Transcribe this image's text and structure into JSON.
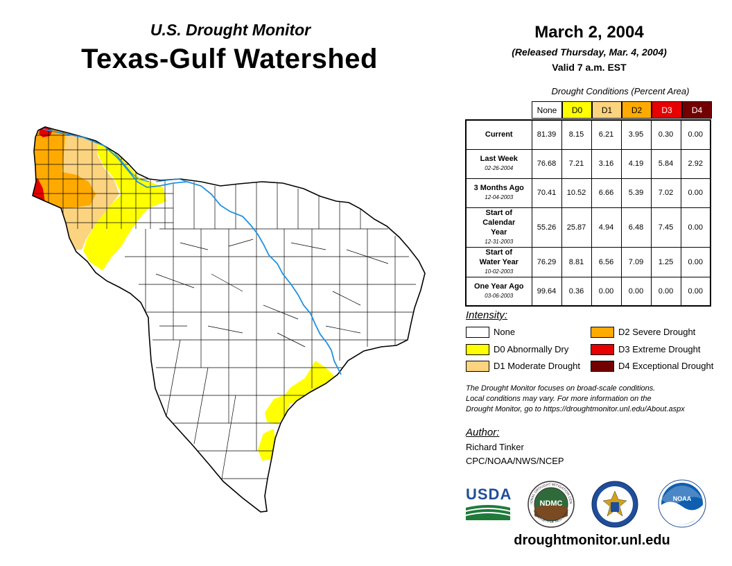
{
  "header": {
    "subtitle": "U.S. Drought Monitor",
    "title": "Texas-Gulf Watershed",
    "date": "March 2, 2004",
    "released": "(Released Thursday, Mar. 4, 2004)",
    "valid": "Valid 7 a.m. EST"
  },
  "table": {
    "caption": "Drought Conditions (Percent Area)",
    "columns": [
      "None",
      "D0",
      "D1",
      "D2",
      "D3",
      "D4"
    ],
    "column_colors": [
      "#ffffff",
      "#ffff00",
      "#fcd37f",
      "#ffaa00",
      "#e60000",
      "#730000"
    ],
    "rows": [
      {
        "label": "Current",
        "date": "",
        "values": [
          "81.39",
          "8.15",
          "6.21",
          "3.95",
          "0.30",
          "0.00"
        ]
      },
      {
        "label": "Last Week",
        "date": "02-26-2004",
        "values": [
          "76.68",
          "7.21",
          "3.16",
          "4.19",
          "5.84",
          "2.92"
        ]
      },
      {
        "label": "3 Months Ago",
        "date": "12-04-2003",
        "values": [
          "70.41",
          "10.52",
          "6.66",
          "5.39",
          "7.02",
          "0.00"
        ]
      },
      {
        "label": "Start of Calendar Year",
        "date": "12-31-2003",
        "values": [
          "55.26",
          "25.87",
          "4.94",
          "6.48",
          "7.45",
          "0.00"
        ]
      },
      {
        "label": "Start of Water Year",
        "date": "10-02-2003",
        "values": [
          "76.29",
          "8.81",
          "6.56",
          "7.09",
          "1.25",
          "0.00"
        ]
      },
      {
        "label": "One Year Ago",
        "date": "03-06-2003",
        "values": [
          "99.64",
          "0.36",
          "0.00",
          "0.00",
          "0.00",
          "0.00"
        ]
      }
    ]
  },
  "legend": {
    "title": "Intensity:",
    "items": [
      {
        "label": "None",
        "color": "#ffffff"
      },
      {
        "label": "D0 Abnormally Dry",
        "color": "#ffff00"
      },
      {
        "label": "D1 Moderate Drought",
        "color": "#fcd37f"
      },
      {
        "label": "D2 Severe Drought",
        "color": "#ffaa00"
      },
      {
        "label": "D3 Extreme Drought",
        "color": "#e60000"
      },
      {
        "label": "D4 Exceptional Drought",
        "color": "#730000"
      }
    ]
  },
  "note": {
    "line1": "The Drought Monitor focuses on broad-scale conditions.",
    "line2": "Local conditions may vary. For more information on the",
    "line3": "Drought Monitor, go to https://droughtmonitor.unl.edu/About.aspx"
  },
  "author": {
    "title": "Author:",
    "name": "Richard Tinker",
    "org": "CPC/NOAA/NWS/NCEP"
  },
  "logos": {
    "usda": "USDA",
    "ndmc": "NDMC",
    "noaa": "NOAA",
    "ndmc_ring": "NATIONAL DROUGHT MITIGATION CENTER",
    "ndmc_ring_bottom": "UNIVERSITY OF NEBRASKA"
  },
  "footer": {
    "url": "droughtmonitor.unl.edu"
  },
  "map": {
    "region": "Texas-Gulf Watershed",
    "colors": {
      "none": "#ffffff",
      "d0": "#ffff00",
      "d1": "#fcd37f",
      "d2": "#ffaa00",
      "d3": "#e60000",
      "d4": "#730000",
      "river": "#1e90e0"
    }
  }
}
